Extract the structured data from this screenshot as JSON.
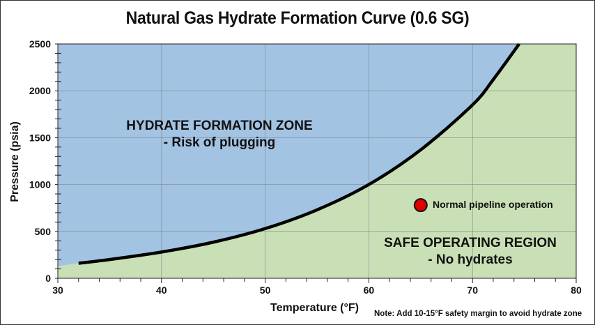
{
  "chart_data": {
    "type": "area",
    "title": "Natural Gas Hydrate Formation Curve (0.6 SG)",
    "xlabel": "Temperature (°F)",
    "ylabel": "Pressure (psia)",
    "xlim": [
      30,
      80
    ],
    "ylim": [
      0,
      2500
    ],
    "x_ticks": [
      30,
      40,
      50,
      60,
      70,
      80
    ],
    "y_ticks": [
      0,
      500,
      1000,
      1500,
      2000,
      2500
    ],
    "grid": true,
    "series": [
      {
        "name": "Hydrate formation curve",
        "x": [
          32,
          35,
          40,
          45,
          50,
          55,
          60,
          65,
          70,
          72,
          74.5
        ],
        "y": [
          160,
          200,
          280,
          385,
          530,
          730,
          1000,
          1370,
          1850,
          2120,
          2500
        ]
      }
    ],
    "regions": [
      {
        "name": "HYDRATE FORMATION ZONE",
        "sublabel": "- Risk of plugging",
        "color": "#a3c3e3",
        "side": "above curve"
      },
      {
        "name": "SAFE OPERATING REGION",
        "sublabel": "- No hydrates",
        "color": "#c9e0b6",
        "side": "below curve"
      }
    ],
    "annotations": [
      {
        "type": "point",
        "x": 65,
        "y": 780,
        "label": "Normal pipeline operation",
        "color": "#dd0000"
      },
      {
        "type": "note",
        "text": "Note: Add 10-15°F safety margin to avoid hydrate zone"
      }
    ]
  },
  "labels": {
    "title": "Natural Gas Hydrate Formation Curve (0.6 SG)",
    "xlabel": "Temperature (°F)",
    "ylabel": "Pressure (psia)",
    "hydrate_zone": "HYDRATE FORMATION ZONE",
    "hydrate_zone_sub": "- Risk of plugging",
    "safe_zone": "SAFE OPERATING REGION",
    "safe_zone_sub": "- No hydrates",
    "point_label": "Normal pipeline operation",
    "note": "Note: Add 10-15°F safety margin to avoid hydrate zone"
  },
  "colors": {
    "hydrate_zone": "#a3c3e3",
    "safe_zone": "#c9e0b6",
    "curve": "#000000",
    "point": "#dd0000",
    "grid": "#7f8a8f"
  }
}
